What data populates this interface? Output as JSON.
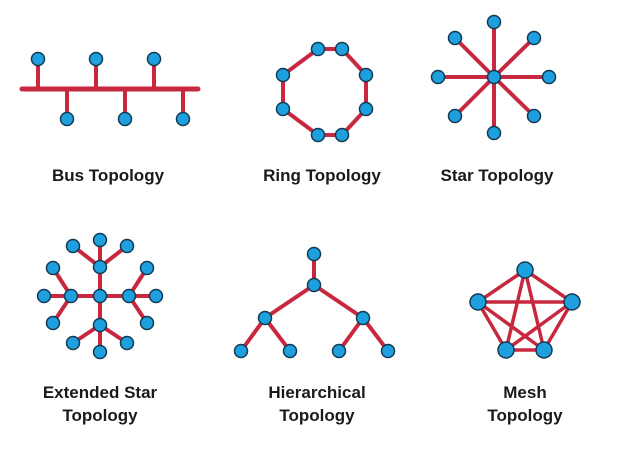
{
  "colors": {
    "link": "#c8283f",
    "node_fill": "#1ea0de",
    "node_stroke": "#123a52",
    "text": "#1a1a1a",
    "background": "#ffffff"
  },
  "topologies": {
    "bus": {
      "lines": [
        "Bus Topology"
      ]
    },
    "ring": {
      "lines": [
        "Ring Topology"
      ]
    },
    "star": {
      "lines": [
        "Star Topology"
      ]
    },
    "extended_star": {
      "lines": [
        "Extended Star",
        "Topology"
      ]
    },
    "hierarchical": {
      "lines": [
        "Hierarchical",
        "Topology"
      ]
    },
    "mesh": {
      "lines": [
        "Mesh",
        "Topology"
      ]
    }
  }
}
